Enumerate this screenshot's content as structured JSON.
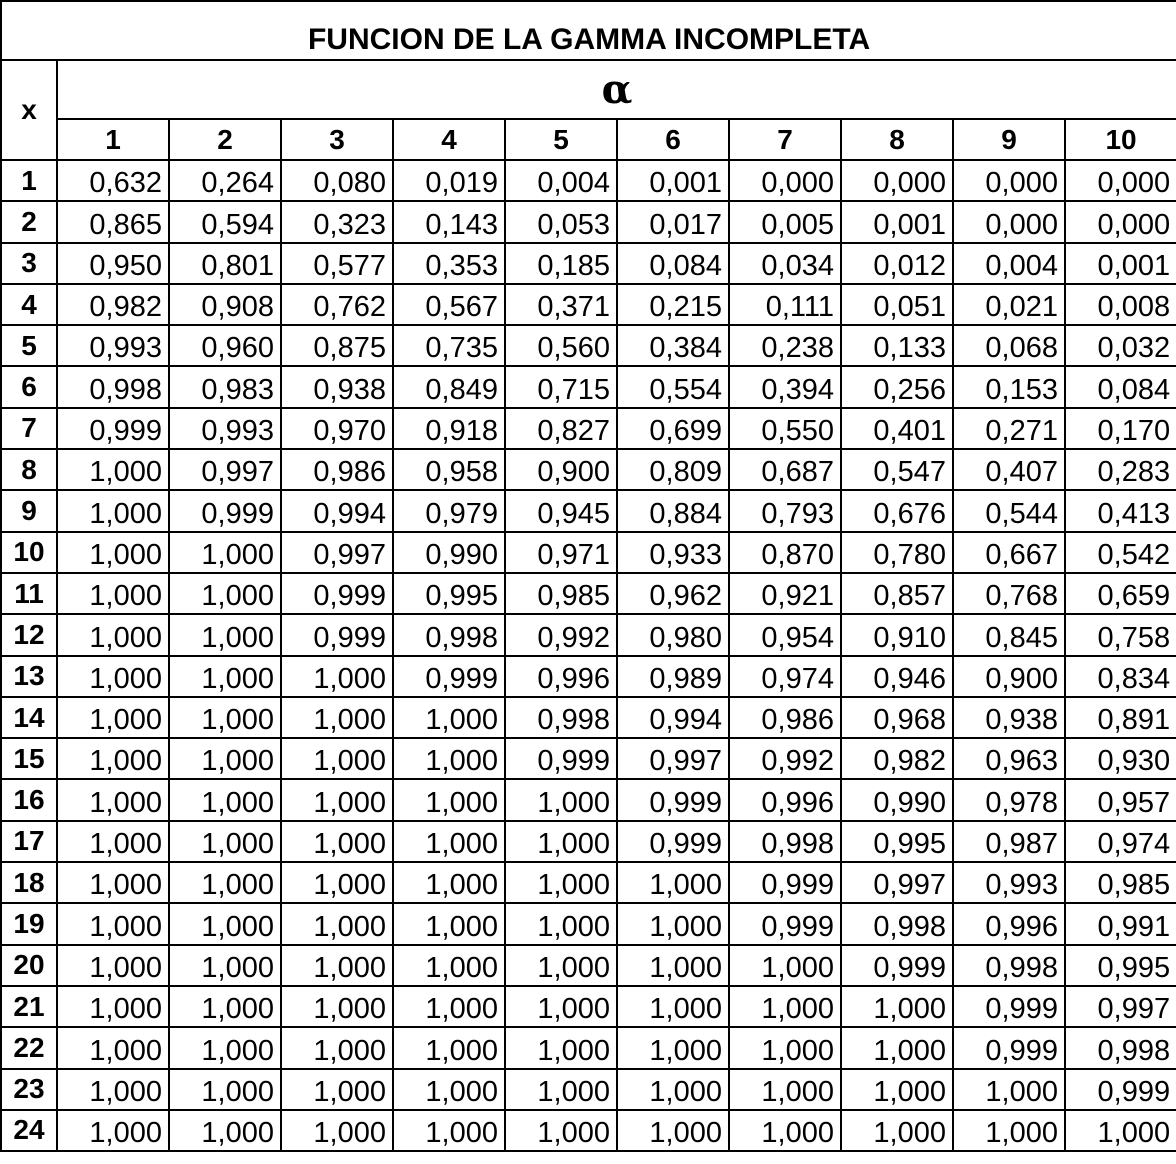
{
  "table": {
    "title": "FUNCION DE LA GAMMA INCOMPLETA",
    "row_header": "x",
    "col_group_header": "α",
    "alphas": [
      "1",
      "2",
      "3",
      "4",
      "5",
      "6",
      "7",
      "8",
      "9",
      "10"
    ],
    "rows": [
      {
        "x": "1",
        "values": [
          "0,632",
          "0,264",
          "0,080",
          "0,019",
          "0,004",
          "0,001",
          "0,000",
          "0,000",
          "0,000",
          "0,000"
        ]
      },
      {
        "x": "2",
        "values": [
          "0,865",
          "0,594",
          "0,323",
          "0,143",
          "0,053",
          "0,017",
          "0,005",
          "0,001",
          "0,000",
          "0,000"
        ]
      },
      {
        "x": "3",
        "values": [
          "0,950",
          "0,801",
          "0,577",
          "0,353",
          "0,185",
          "0,084",
          "0,034",
          "0,012",
          "0,004",
          "0,001"
        ]
      },
      {
        "x": "4",
        "values": [
          "0,982",
          "0,908",
          "0,762",
          "0,567",
          "0,371",
          "0,215",
          "0,111",
          "0,051",
          "0,021",
          "0,008"
        ]
      },
      {
        "x": "5",
        "values": [
          "0,993",
          "0,960",
          "0,875",
          "0,735",
          "0,560",
          "0,384",
          "0,238",
          "0,133",
          "0,068",
          "0,032"
        ]
      },
      {
        "x": "6",
        "values": [
          "0,998",
          "0,983",
          "0,938",
          "0,849",
          "0,715",
          "0,554",
          "0,394",
          "0,256",
          "0,153",
          "0,084"
        ]
      },
      {
        "x": "7",
        "values": [
          "0,999",
          "0,993",
          "0,970",
          "0,918",
          "0,827",
          "0,699",
          "0,550",
          "0,401",
          "0,271",
          "0,170"
        ]
      },
      {
        "x": "8",
        "values": [
          "1,000",
          "0,997",
          "0,986",
          "0,958",
          "0,900",
          "0,809",
          "0,687",
          "0,547",
          "0,407",
          "0,283"
        ]
      },
      {
        "x": "9",
        "values": [
          "1,000",
          "0,999",
          "0,994",
          "0,979",
          "0,945",
          "0,884",
          "0,793",
          "0,676",
          "0,544",
          "0,413"
        ]
      },
      {
        "x": "10",
        "values": [
          "1,000",
          "1,000",
          "0,997",
          "0,990",
          "0,971",
          "0,933",
          "0,870",
          "0,780",
          "0,667",
          "0,542"
        ]
      },
      {
        "x": "11",
        "values": [
          "1,000",
          "1,000",
          "0,999",
          "0,995",
          "0,985",
          "0,962",
          "0,921",
          "0,857",
          "0,768",
          "0,659"
        ]
      },
      {
        "x": "12",
        "values": [
          "1,000",
          "1,000",
          "0,999",
          "0,998",
          "0,992",
          "0,980",
          "0,954",
          "0,910",
          "0,845",
          "0,758"
        ]
      },
      {
        "x": "13",
        "values": [
          "1,000",
          "1,000",
          "1,000",
          "0,999",
          "0,996",
          "0,989",
          "0,974",
          "0,946",
          "0,900",
          "0,834"
        ]
      },
      {
        "x": "14",
        "values": [
          "1,000",
          "1,000",
          "1,000",
          "1,000",
          "0,998",
          "0,994",
          "0,986",
          "0,968",
          "0,938",
          "0,891"
        ]
      },
      {
        "x": "15",
        "values": [
          "1,000",
          "1,000",
          "1,000",
          "1,000",
          "0,999",
          "0,997",
          "0,992",
          "0,982",
          "0,963",
          "0,930"
        ]
      },
      {
        "x": "16",
        "values": [
          "1,000",
          "1,000",
          "1,000",
          "1,000",
          "1,000",
          "0,999",
          "0,996",
          "0,990",
          "0,978",
          "0,957"
        ]
      },
      {
        "x": "17",
        "values": [
          "1,000",
          "1,000",
          "1,000",
          "1,000",
          "1,000",
          "0,999",
          "0,998",
          "0,995",
          "0,987",
          "0,974"
        ]
      },
      {
        "x": "18",
        "values": [
          "1,000",
          "1,000",
          "1,000",
          "1,000",
          "1,000",
          "1,000",
          "0,999",
          "0,997",
          "0,993",
          "0,985"
        ]
      },
      {
        "x": "19",
        "values": [
          "1,000",
          "1,000",
          "1,000",
          "1,000",
          "1,000",
          "1,000",
          "0,999",
          "0,998",
          "0,996",
          "0,991"
        ]
      },
      {
        "x": "20",
        "values": [
          "1,000",
          "1,000",
          "1,000",
          "1,000",
          "1,000",
          "1,000",
          "1,000",
          "0,999",
          "0,998",
          "0,995"
        ]
      },
      {
        "x": "21",
        "values": [
          "1,000",
          "1,000",
          "1,000",
          "1,000",
          "1,000",
          "1,000",
          "1,000",
          "1,000",
          "0,999",
          "0,997"
        ]
      },
      {
        "x": "22",
        "values": [
          "1,000",
          "1,000",
          "1,000",
          "1,000",
          "1,000",
          "1,000",
          "1,000",
          "1,000",
          "0,999",
          "0,998"
        ]
      },
      {
        "x": "23",
        "values": [
          "1,000",
          "1,000",
          "1,000",
          "1,000",
          "1,000",
          "1,000",
          "1,000",
          "1,000",
          "1,000",
          "0,999"
        ]
      },
      {
        "x": "24",
        "values": [
          "1,000",
          "1,000",
          "1,000",
          "1,000",
          "1,000",
          "1,000",
          "1,000",
          "1,000",
          "1,000",
          "1,000"
        ]
      }
    ]
  }
}
